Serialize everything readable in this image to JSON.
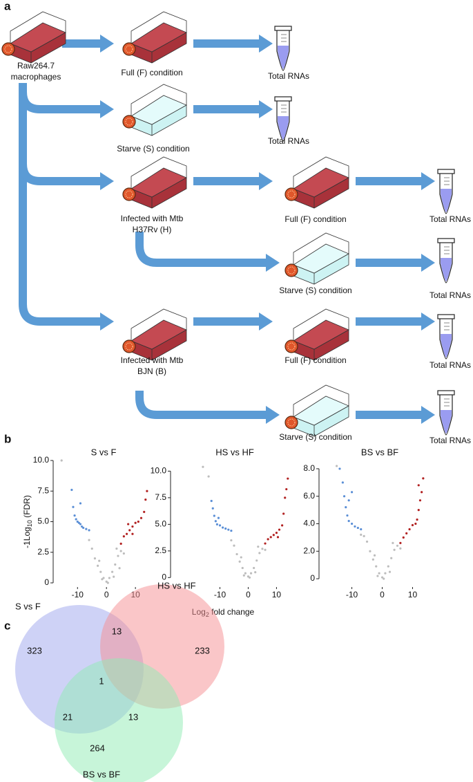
{
  "panel_labels": [
    "a",
    "b",
    "c"
  ],
  "diagram": {
    "nodes": [
      {
        "lines": [
          "Raw264.7",
          "macrophages"
        ]
      },
      {
        "lines": [
          "Full (F) condition"
        ]
      },
      {
        "lines": [
          "Total RNAs"
        ]
      },
      {
        "lines": [
          "Starve (S) condition"
        ]
      },
      {
        "lines": [
          "Total RNAs"
        ]
      },
      {
        "lines": [
          "Infected with Mtb",
          "H37Rv (H)"
        ]
      },
      {
        "lines": [
          "Full (F) condition"
        ]
      },
      {
        "lines": [
          "Total RNAs"
        ]
      },
      {
        "lines": [
          "Starve (S) condition"
        ]
      },
      {
        "lines": [
          "Total RNAs"
        ]
      },
      {
        "lines": [
          "Infected with Mtb",
          "BJN (B)"
        ]
      },
      {
        "lines": [
          "Full (F) condition"
        ]
      },
      {
        "lines": [
          "Total RNAs"
        ]
      },
      {
        "lines": [
          "Starve (S) condition"
        ]
      },
      {
        "lines": [
          "Total RNAs"
        ]
      }
    ]
  },
  "chart_data": [
    {
      "type": "scatter",
      "title": "S vs F",
      "y_label": [
        "-1Log",
        "10",
        " (FDR)"
      ],
      "xlim": [
        -16.5,
        14.5
      ],
      "ylim": [
        0,
        10
      ],
      "xticks": [
        -10,
        0,
        10
      ],
      "yticks": [
        0,
        2.5,
        {
          "value": 5,
          "label": "5.0"
        },
        7.5,
        {
          "value": 10,
          "label": "10.0"
        }
      ],
      "series": [
        {
          "color": "#bdbdbd",
          "x": [
            -15.5,
            -4,
            -3,
            -2,
            -1,
            0,
            1,
            2,
            3,
            4,
            5,
            -5,
            -1.5,
            0.5,
            2.5,
            -2.5,
            3.5,
            6,
            -6,
            4.5
          ],
          "values": [
            10,
            2.0,
            1.4,
            0.9,
            0.4,
            0.1,
            0.4,
            0.9,
            1.5,
            2.2,
            2.6,
            2.8,
            0.3,
            0.0,
            0.5,
            1.8,
            2.8,
            2.4,
            3.5,
            1.2
          ]
        },
        {
          "color": "#5b8fd6",
          "x": [
            -12,
            -11,
            -10.5,
            -10,
            -9.5,
            -9,
            -8.5,
            -8,
            -7,
            -6,
            -11.5,
            -9
          ],
          "values": [
            7.6,
            5.5,
            5.2,
            5.0,
            4.9,
            4.8,
            4.6,
            4.5,
            4.4,
            4.3,
            6.2,
            6.5
          ]
        },
        {
          "color": "#b22222",
          "x": [
            5,
            6,
            7,
            8,
            9,
            10,
            11,
            12,
            13,
            13.5,
            14,
            9,
            7.5
          ],
          "values": [
            3.2,
            3.8,
            4.0,
            4.3,
            4.6,
            4.9,
            5.0,
            5.3,
            5.8,
            6.8,
            7.5,
            4.0,
            4.8
          ]
        }
      ]
    },
    {
      "type": "scatter",
      "title": "HS vs HF",
      "x_label": [
        "Log",
        "2",
        " fold change"
      ],
      "xlim": [
        -25.5,
        16
      ],
      "ylim": [
        -0.5,
        11
      ],
      "xticks": [
        -10,
        0,
        10
      ],
      "yticks": [
        0,
        2.5,
        {
          "value": 5,
          "label": "5.0"
        },
        7.5,
        {
          "value": 10,
          "label": "10.0"
        }
      ],
      "series": [
        {
          "color": "#bdbdbd",
          "x": [
            -16,
            -14,
            -4,
            -3,
            -2,
            -1,
            0,
            1,
            2,
            3,
            4,
            5,
            -5,
            0.5,
            -1.5,
            2.5,
            -2.5,
            3.5,
            -6,
            6
          ],
          "values": [
            10.4,
            9.5,
            2.2,
            1.5,
            0.9,
            0.4,
            0.1,
            0.4,
            0.9,
            1.6,
            2.3,
            2.7,
            3.0,
            0.0,
            0.2,
            0.5,
            1.9,
            2.9,
            3.5,
            2.6
          ]
        },
        {
          "color": "#5b8fd6",
          "x": [
            -13,
            -12,
            -11.5,
            -11,
            -10,
            -9,
            -8,
            -7,
            -6,
            -12.5,
            -10.5
          ],
          "values": [
            7.2,
            5.8,
            5.3,
            5.0,
            4.9,
            4.7,
            4.6,
            4.5,
            4.4,
            6.5,
            5.6
          ]
        },
        {
          "color": "#b22222",
          "x": [
            6,
            7,
            8,
            9,
            10,
            11,
            12,
            12.5,
            13,
            13.5,
            14,
            10.5
          ],
          "values": [
            3.2,
            3.6,
            3.8,
            4.0,
            4.2,
            4.5,
            4.9,
            6.0,
            7.5,
            8.3,
            9.3,
            3.8
          ]
        }
      ]
    },
    {
      "type": "scatter",
      "title": "BS vs BF",
      "xlim": [
        -19,
        17.4
      ],
      "ylim": [
        -0.3,
        8.6
      ],
      "xticks": [
        -10,
        0,
        10
      ],
      "yticks": [
        0,
        {
          "value": 2,
          "label": "2.0"
        },
        {
          "value": 4,
          "label": "4.0"
        },
        {
          "value": 6,
          "label": "6.0"
        },
        {
          "value": 8,
          "label": "8.0"
        }
      ],
      "series": [
        {
          "color": "#bdbdbd",
          "x": [
            -15,
            -4,
            -3,
            -2,
            -1,
            0,
            1,
            2,
            3,
            4,
            5,
            -5,
            0.5,
            -1.5,
            2.5,
            -2.5,
            3.5,
            -6,
            6,
            -7
          ],
          "values": [
            8.2,
            2.0,
            1.4,
            0.9,
            0.4,
            0.1,
            0.4,
            0.9,
            1.5,
            2.1,
            2.4,
            2.7,
            0.0,
            0.2,
            0.5,
            1.7,
            2.6,
            3.1,
            2.2,
            3.2
          ]
        },
        {
          "color": "#5b8fd6",
          "x": [
            -14,
            -13,
            -12.5,
            -12,
            -11.5,
            -11,
            -10,
            -9,
            -8,
            -7,
            -10,
            -11
          ],
          "values": [
            8,
            7,
            6,
            5.2,
            4.6,
            4.2,
            4.0,
            3.8,
            3.7,
            3.6,
            6.3,
            5.7
          ]
        },
        {
          "color": "#b22222",
          "x": [
            6,
            7,
            8,
            9,
            10,
            11,
            11.5,
            12,
            12.5,
            13,
            13.5,
            12
          ],
          "values": [
            2.6,
            3.0,
            3.3,
            3.6,
            3.9,
            4.0,
            4.3,
            5.0,
            5.7,
            6.3,
            7.3,
            6.8
          ]
        }
      ]
    }
  ],
  "venn": {
    "sets": [
      "S vs F",
      "HS vs HF",
      "BS vs BF"
    ],
    "regions": [
      323,
      13,
      233,
      1,
      21,
      13,
      264
    ]
  }
}
